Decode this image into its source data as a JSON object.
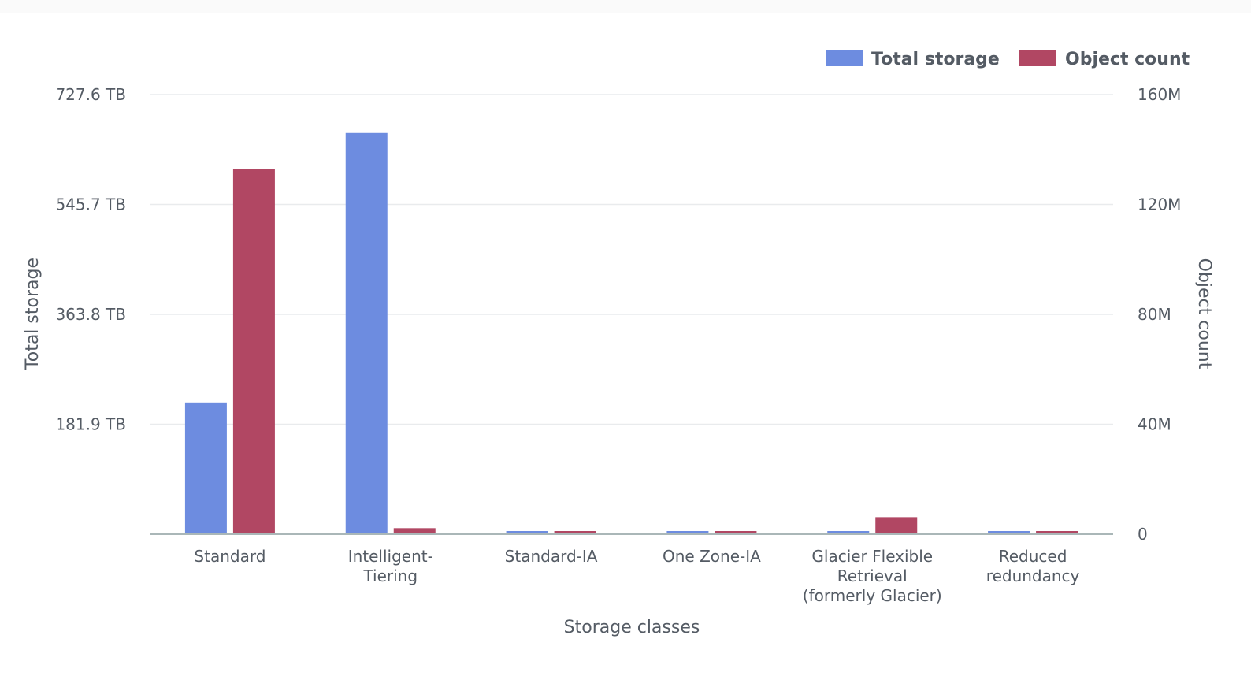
{
  "chart_data": {
    "type": "bar",
    "xlabel": "Storage classes",
    "ylabel_left": "Total storage",
    "ylabel_right": "Object count",
    "categories": [
      [
        "Standard"
      ],
      [
        "Intelligent-",
        "Tiering"
      ],
      [
        "Standard-IA"
      ],
      [
        "One Zone-IA"
      ],
      [
        "Glacier Flexible",
        "Retrieval",
        "(formerly Glacier)"
      ],
      [
        "Reduced",
        "redundancy"
      ]
    ],
    "left_axis": {
      "unit": "TB",
      "ylim": [
        0,
        727.6
      ],
      "ticks": [
        0,
        181.9,
        363.8,
        545.7,
        727.6
      ],
      "tick_labels": [
        "",
        "181.9 TB",
        "363.8 TB",
        "545.7 TB",
        "727.6 TB"
      ]
    },
    "right_axis": {
      "ylim": [
        0,
        160000000
      ],
      "ticks": [
        0,
        40000000,
        80000000,
        120000000,
        160000000
      ],
      "tick_labels": [
        "0",
        "40M",
        "80M",
        "120M",
        "160M"
      ]
    },
    "series": [
      {
        "name": "Total storage",
        "axis": "left",
        "color": "#6d8ce0",
        "values": [
          218,
          664,
          3,
          3,
          3,
          3
        ]
      },
      {
        "name": "Object count",
        "axis": "right",
        "color": "#b14763",
        "values": [
          133000000,
          2200000,
          700000,
          700000,
          6200000,
          700000
        ]
      }
    ],
    "legend_position": "top-right",
    "grid": true
  }
}
